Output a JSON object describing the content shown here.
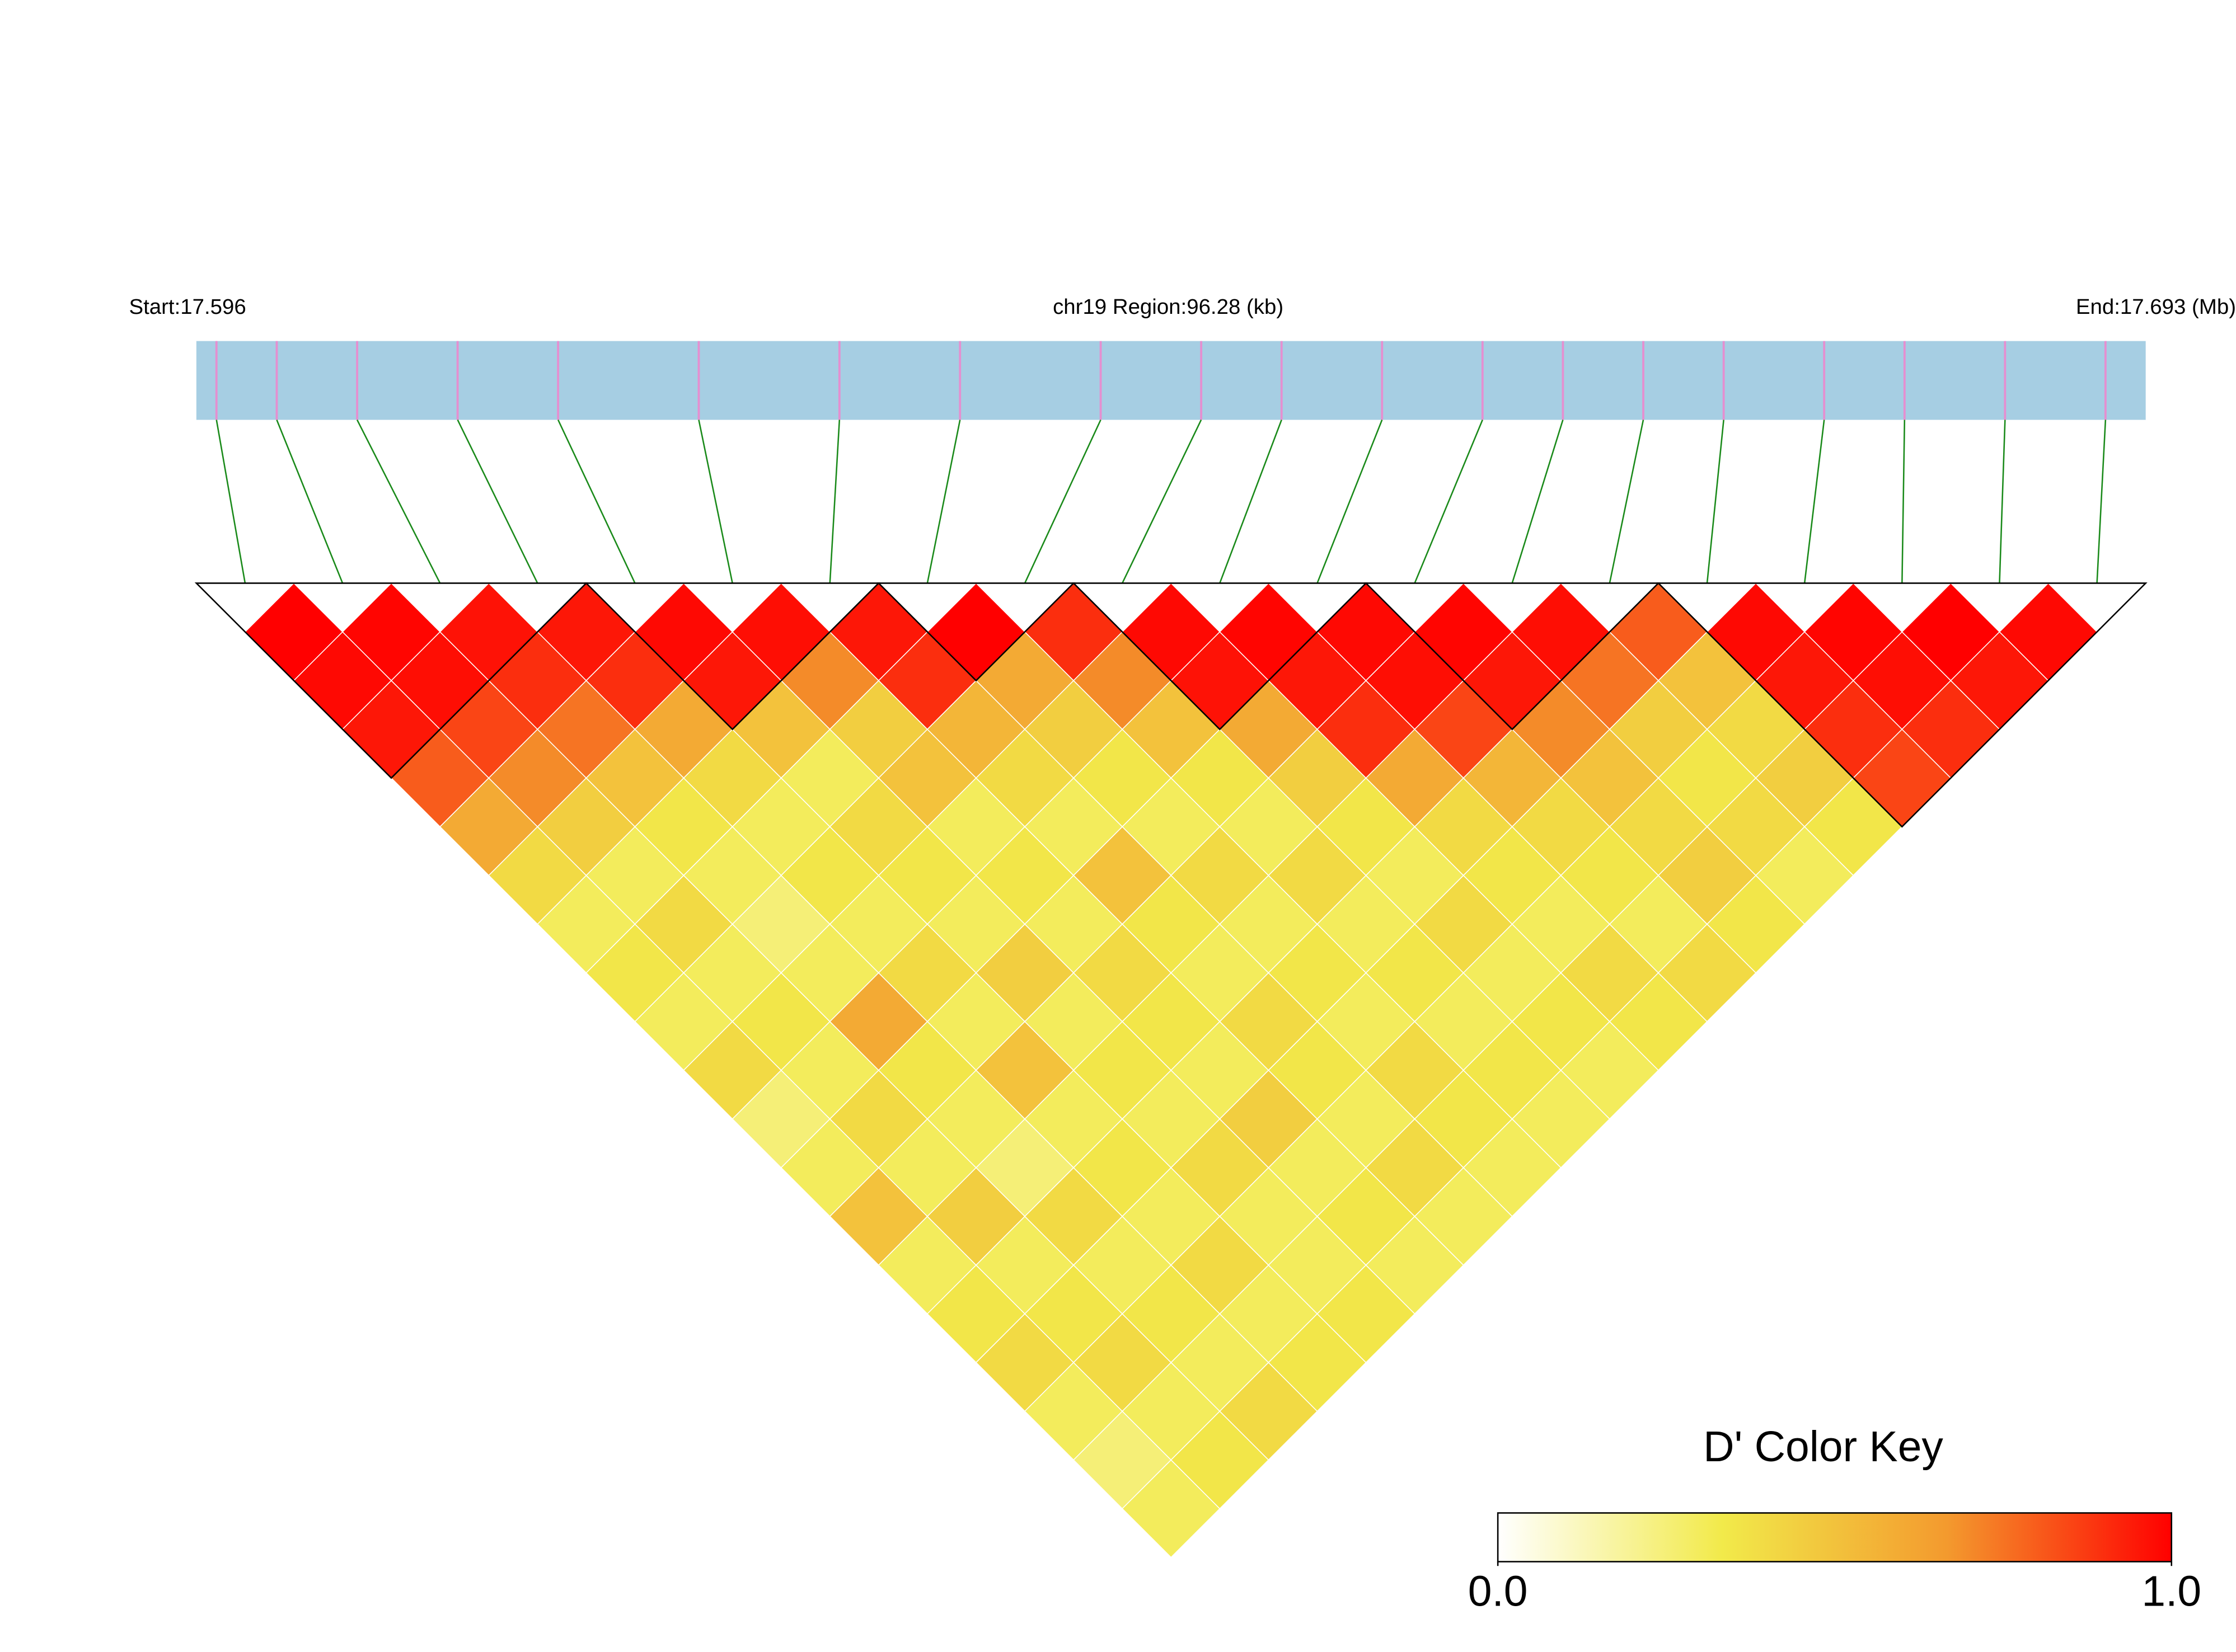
{
  "chart_data": {
    "type": "ld_heatmap",
    "title": "chr19 Region:96.28 (kb)",
    "xlim": [
      17.596,
      17.693
    ],
    "xticks": [
      {
        "value": 17.596,
        "label": "Start:17.596"
      },
      {
        "value": 17.693,
        "label": "End:17.693 (Mb)"
      }
    ],
    "snp_positions": [
      17.597,
      17.6,
      17.604,
      17.609,
      17.614,
      17.621,
      17.628,
      17.634,
      17.641,
      17.646,
      17.65,
      17.655,
      17.66,
      17.664,
      17.668,
      17.672,
      17.677,
      17.681,
      17.686,
      17.691
    ],
    "dprime": [
      [
        1,
        0.98,
        0.95,
        0.8,
        0.6,
        0.4,
        0.3,
        0.35,
        0.3,
        0.4,
        0.25,
        0.3,
        0.5,
        0.3,
        0.35,
        0.4,
        0.3,
        0.25,
        0.3
      ],
      [
        0.99,
        0.97,
        0.85,
        0.7,
        0.45,
        0.3,
        0.4,
        0.3,
        0.35,
        0.3,
        0.4,
        0.3,
        0.45,
        0.3,
        0.35,
        0.4,
        0.3,
        0.35
      ],
      [
        0.96,
        0.9,
        0.75,
        0.5,
        0.35,
        0.3,
        0.25,
        0.3,
        0.6,
        0.35,
        0.3,
        0.25,
        0.4,
        0.3,
        0.35,
        0.3,
        0.4
      ],
      [
        0.95,
        0.9,
        0.6,
        0.4,
        0.3,
        0.35,
        0.3,
        0.4,
        0.3,
        0.5,
        0.3,
        0.35,
        0.3,
        0.4,
        0.3,
        0.35
      ],
      [
        0.98,
        0.95,
        0.5,
        0.3,
        0.4,
        0.35,
        0.3,
        0.45,
        0.3,
        0.35,
        0.3,
        0.4,
        0.3,
        0.3,
        0.35
      ],
      [
        0.97,
        0.7,
        0.45,
        0.5,
        0.3,
        0.35,
        0.3,
        0.4,
        0.35,
        0.3,
        0.45,
        0.3,
        0.35,
        0.3
      ],
      [
        0.95,
        0.9,
        0.55,
        0.4,
        0.3,
        0.5,
        0.35,
        0.3,
        0.4,
        0.35,
        0.3,
        0.4,
        0.3
      ],
      [
        1,
        0.6,
        0.45,
        0.35,
        0.3,
        0.4,
        0.3,
        0.35,
        0.3,
        0.4,
        0.35,
        0.3
      ],
      [
        0.9,
        0.7,
        0.5,
        0.35,
        0.3,
        0.4,
        0.3,
        0.35,
        0.3,
        0.35,
        0.3
      ],
      [
        0.98,
        0.96,
        0.6,
        0.45,
        0.35,
        0.3,
        0.4,
        0.3,
        0.35,
        0.3
      ],
      [
        0.99,
        0.95,
        0.9,
        0.6,
        0.4,
        0.35,
        0.3,
        0.4,
        0.35
      ],
      [
        0.98,
        0.97,
        0.85,
        0.55,
        0.4,
        0.35,
        0.3,
        0.4
      ],
      [
        0.99,
        0.95,
        0.7,
        0.5,
        0.4,
        0.45,
        0.35
      ],
      [
        0.97,
        0.75,
        0.45,
        0.35,
        0.4,
        0.3
      ],
      [
        0.8,
        0.5,
        0.4,
        0.45,
        0.35
      ],
      [
        0.98,
        0.95,
        0.9,
        0.85
      ],
      [
        0.99,
        0.97,
        0.9
      ],
      [
        1,
        0.95
      ],
      [
        0.98
      ]
    ],
    "blocks": [
      [
        0,
        3
      ],
      [
        4,
        6
      ],
      [
        7,
        8
      ],
      [
        9,
        11
      ],
      [
        12,
        14
      ],
      [
        15,
        19
      ]
    ],
    "bar_color": "#a6cee3",
    "snp_color": "#e58fd0",
    "link_color": "#1a8a1a",
    "colors": [
      "#ffffff",
      "#f2ea4a",
      "#f39a2e",
      "#ff0000"
    ],
    "color_key": {
      "title": "D' Color Key",
      "lim": [
        0,
        1
      ],
      "ticks": [
        {
          "value": 0,
          "label": "0.0"
        },
        {
          "value": 1,
          "label": "1.0"
        }
      ]
    }
  }
}
